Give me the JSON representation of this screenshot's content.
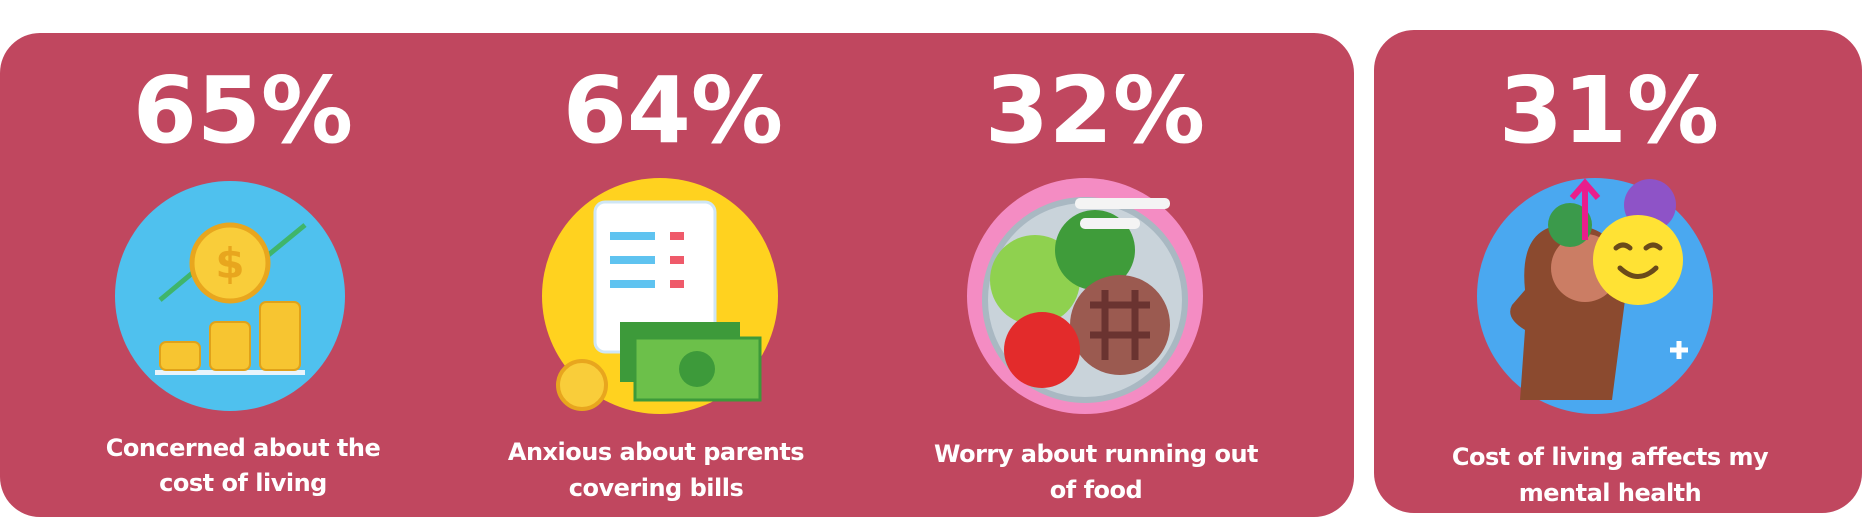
{
  "stats": [
    {
      "figure": "65%",
      "caption": [
        "Concerned about the",
        "cost of living"
      ]
    },
    {
      "figure": "64%",
      "caption": [
        "Anxious about parents",
        "covering bills"
      ]
    },
    {
      "figure": "32%",
      "caption": [
        "Worry about running out",
        "of food"
      ]
    },
    {
      "figure": "31%",
      "caption": [
        "Cost of living affects my",
        "mental health"
      ]
    }
  ]
}
